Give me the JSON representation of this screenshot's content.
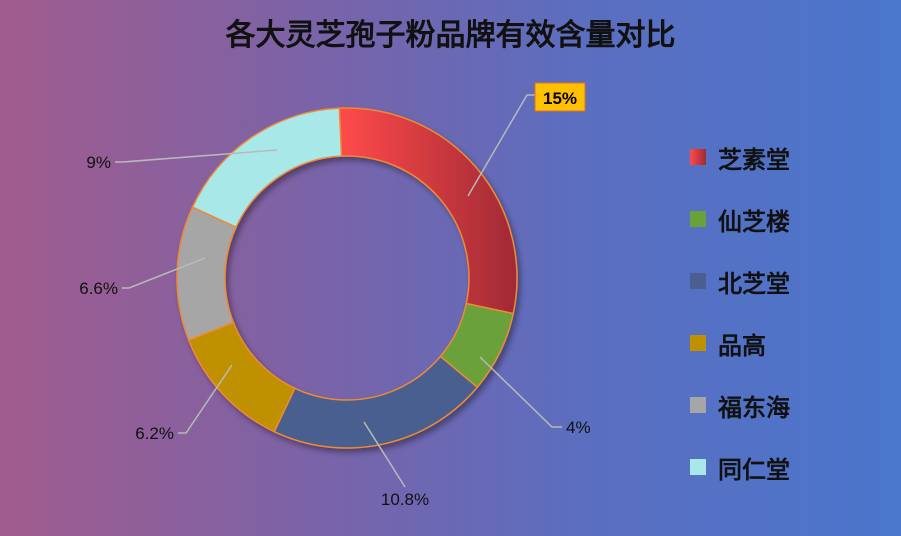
{
  "chart_data": {
    "type": "pie",
    "variant": "doughnut",
    "title": "各大灵芝孢子粉品牌有效含量对比",
    "categories": [
      "芝素堂",
      "仙芝楼",
      "北芝堂",
      "品高",
      "福东海",
      "同仁堂"
    ],
    "values": [
      15,
      4,
      10.8,
      6.2,
      6.6,
      9
    ],
    "data_labels": [
      "15%",
      "4%",
      "10.8%",
      "6.2%",
      "6.6%",
      "9%"
    ],
    "colors": [
      "#e8393e",
      "#6aa13a",
      "#4a5f90",
      "#bf9000",
      "#a6a6a6",
      "#a8e8e8"
    ],
    "highlight_index": 0,
    "highlight_color": "#ffc000",
    "legend_position": "right"
  }
}
